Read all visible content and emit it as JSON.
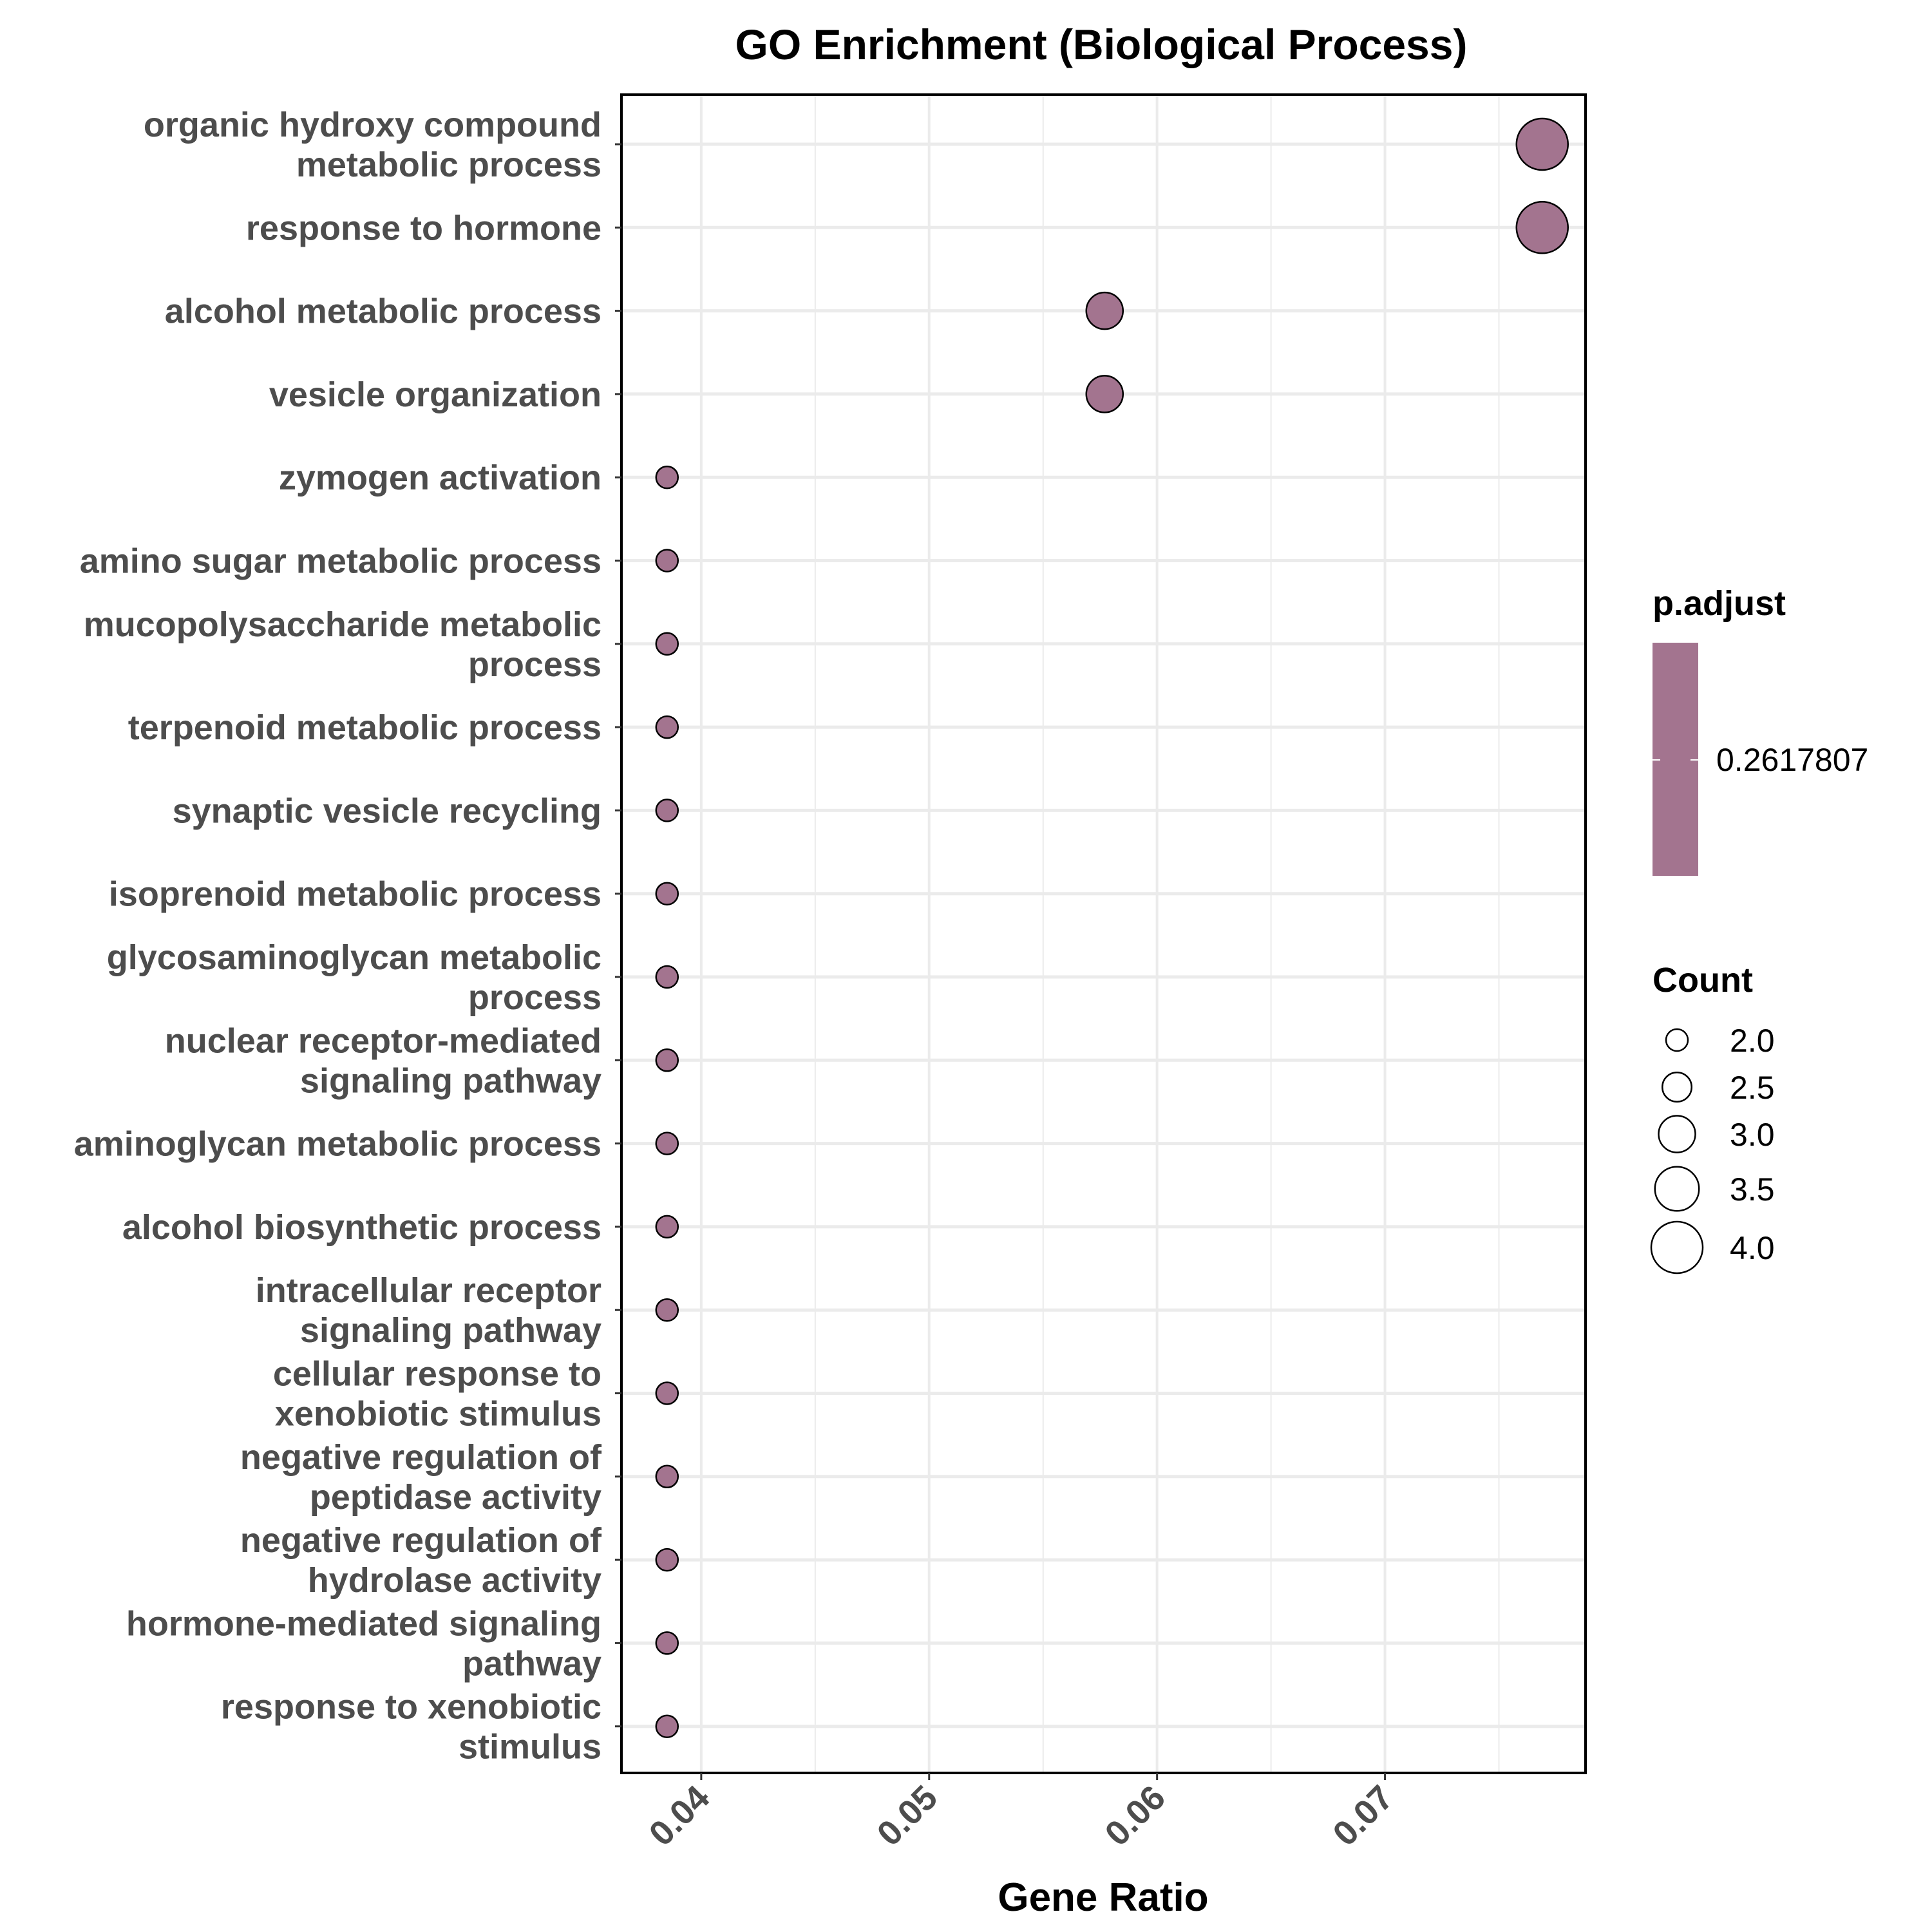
{
  "chart_data": {
    "type": "scatter",
    "title": "GO Enrichment (Biological Process)",
    "xlabel": "Gene Ratio",
    "ylabel": "",
    "x_ticks": [
      "0.04",
      "0.05",
      "0.06",
      "0.07"
    ],
    "x_tick_values": [
      0.04,
      0.05,
      0.06,
      0.07
    ],
    "xlim": [
      0.0365,
      0.0788
    ],
    "grid": true,
    "legend_position": "right",
    "categories": [
      "organic hydroxy compound\nmetabolic process",
      "response to hormone",
      "alcohol metabolic process",
      "vesicle organization",
      "zymogen activation",
      "amino sugar metabolic process",
      "mucopolysaccharide metabolic\nprocess",
      "terpenoid metabolic process",
      "synaptic vesicle recycling",
      "isoprenoid metabolic process",
      "glycosaminoglycan metabolic\nprocess",
      "nuclear receptor-mediated\nsignaling pathway",
      "aminoglycan metabolic process",
      "alcohol biosynthetic process",
      "intracellular receptor\nsignaling pathway",
      "cellular response to\nxenobiotic stimulus",
      "negative regulation of\npeptidase activity",
      "negative regulation of\nhydrolase activity",
      "hormone-mediated signaling\npathway",
      "response to xenobiotic\nstimulus"
    ],
    "gene_ratio": [
      0.0769,
      0.0769,
      0.0577,
      0.0577,
      0.0385,
      0.0385,
      0.0385,
      0.0385,
      0.0385,
      0.0385,
      0.0385,
      0.0385,
      0.0385,
      0.0385,
      0.0385,
      0.0385,
      0.0385,
      0.0385,
      0.0385,
      0.0385
    ],
    "count": [
      4,
      4,
      3,
      3,
      2,
      2,
      2,
      2,
      2,
      2,
      2,
      2,
      2,
      2,
      2,
      2,
      2,
      2,
      2,
      2
    ],
    "p_adjust": [
      0.2617807,
      0.2617807,
      0.2617807,
      0.2617807,
      0.2617807,
      0.2617807,
      0.2617807,
      0.2617807,
      0.2617807,
      0.2617807,
      0.2617807,
      0.2617807,
      0.2617807,
      0.2617807,
      0.2617807,
      0.2617807,
      0.2617807,
      0.2617807,
      0.2617807,
      0.2617807
    ],
    "color_legend": {
      "title": "p.adjust",
      "label": "0.2617807",
      "color": "#a3748f"
    },
    "size_legend": {
      "title": "Count",
      "labels": [
        "2.0",
        "2.5",
        "3.0",
        "3.5",
        "4.0"
      ],
      "values": [
        2.0,
        2.5,
        3.0,
        3.5,
        4.0
      ]
    },
    "point_color": "#a3748f"
  }
}
